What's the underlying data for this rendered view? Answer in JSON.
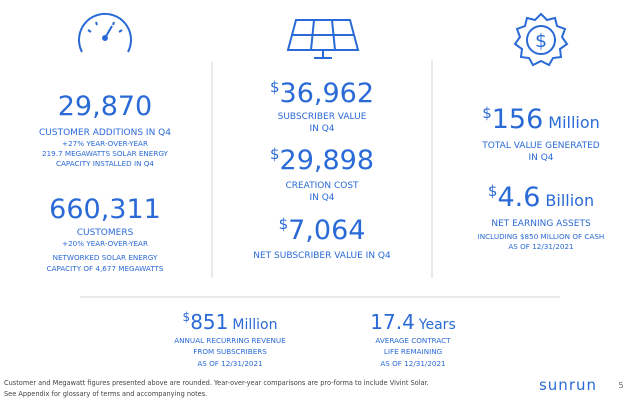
{
  "left": {
    "customer_additions": {
      "number": "29,870",
      "label": "CUSTOMER ADDITIONS IN Q4",
      "notes": [
        "+27% YEAR-OVER-YEAR",
        "219.7 MEGAWATTS SOLAR ENERGY",
        "CAPACITY INSTALLED IN Q4"
      ]
    },
    "customers": {
      "number": "660,311",
      "label": "CUSTOMERS",
      "notes": [
        "+20% YEAR-OVER-YEAR",
        "NETWORKED SOLAR ENERGY",
        "CAPACITY OF 4,677 MEGAWATTS"
      ]
    }
  },
  "middle": {
    "subscriber_value": {
      "currency": "$",
      "number": "36,962",
      "label": [
        "SUBSCRIBER VALUE",
        "IN Q4"
      ]
    },
    "creation_cost": {
      "currency": "$",
      "number": "29,898",
      "label": [
        "CREATION COST",
        "IN Q4"
      ]
    },
    "net_subscriber_value": {
      "currency": "$",
      "number": "7,064",
      "label": [
        "NET SUBSCRIBER VALUE IN Q4"
      ]
    }
  },
  "right": {
    "total_value": {
      "currency": "$",
      "number": "156",
      "unit": "Million",
      "label": [
        "TOTAL VALUE GENERATED",
        "IN Q4"
      ]
    },
    "net_earning_assets": {
      "currency": "$",
      "number": "4.6",
      "unit": "Billion",
      "label": [
        "NET EARNING ASSETS",
        "INCLUDING $850 MILLION OF CASH",
        "AS OF 12/31/2021"
      ]
    }
  },
  "bottom": {
    "recurring_revenue": {
      "currency": "$",
      "number": "851",
      "unit": "Million",
      "label": [
        "ANNUAL RECURRING REVENUE",
        "FROM SUBSCRIBERS",
        "AS OF 12/31/2021"
      ]
    },
    "contract_life": {
      "number": "17.4",
      "unit": "Years",
      "label": [
        "AVERAGE CONTRACT",
        "LIFE REMAINING",
        "AS OF 12/31/2021"
      ]
    }
  },
  "footer": {
    "notes": [
      "Customer and Megawatt figures presented above are rounded. Year-over-year comparisons are pro-forma to include Vivint Solar.",
      "See Appendix for glossary of terms and accompanying notes."
    ],
    "logo": "sunrun",
    "page": "5"
  }
}
